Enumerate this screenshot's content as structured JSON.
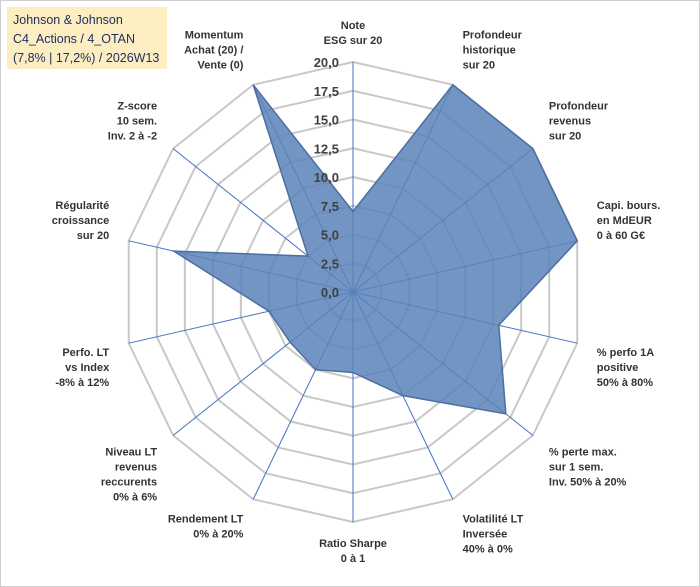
{
  "title": {
    "line1": "Johnson & Johnson",
    "line2": "C4_Actions / 4_OTAN",
    "line3": "(7,8% | 17,2%) / 2026W13"
  },
  "colors": {
    "fill": "#5b83b8",
    "fill_opacity": "0.85",
    "stroke": "#4a6fa0",
    "grid": "#c8c8c8",
    "spoke": "#4472c4",
    "title_bg": "#fdeec2"
  },
  "chart_data": {
    "type": "radar",
    "r_range": [
      0,
      20
    ],
    "ticks": [
      "0,0",
      "2,5",
      "5,0",
      "7,5",
      "10,0",
      "12,5",
      "15,0",
      "17,5",
      "20,0"
    ],
    "tick_values": [
      0,
      2.5,
      5,
      7.5,
      10,
      12.5,
      15,
      17.5,
      20
    ],
    "categories": [
      [
        "Note",
        "ESG sur 20"
      ],
      [
        "Profondeur",
        "historique",
        "sur 20"
      ],
      [
        "Profondeur",
        "revenus",
        "sur 20"
      ],
      [
        "Capi. bours.",
        "en MdEUR",
        "0 à 60 G€"
      ],
      [
        "% perfo 1A",
        "positive",
        "50% à 80%"
      ],
      [
        "% perte max.",
        "sur 1 sem.",
        "Inv. 50% à 20%"
      ],
      [
        "Volatilité LT",
        "Inversée",
        "40% à 0%"
      ],
      [
        "Ratio Sharpe",
        "0 à 1"
      ],
      [
        "Rendement LT",
        "0% à 20%"
      ],
      [
        "Niveau LT",
        "revenus",
        "reccurents",
        "0% à 6%"
      ],
      [
        "Perfo. LT",
        "vs Index",
        "-8% à 12%"
      ],
      [
        "Régularité",
        "croissance",
        "sur 20"
      ],
      [
        "Z-score",
        "10 sem.",
        "Inv. 2 à -2"
      ],
      [
        "Momentum",
        "Achat (20) /",
        "Vente (0)"
      ]
    ],
    "values": [
      7.0,
      20.0,
      20.0,
      20.0,
      13.0,
      17.0,
      10.0,
      7.0,
      7.5,
      7.0,
      7.5,
      16.0,
      5.0,
      20.0
    ]
  }
}
